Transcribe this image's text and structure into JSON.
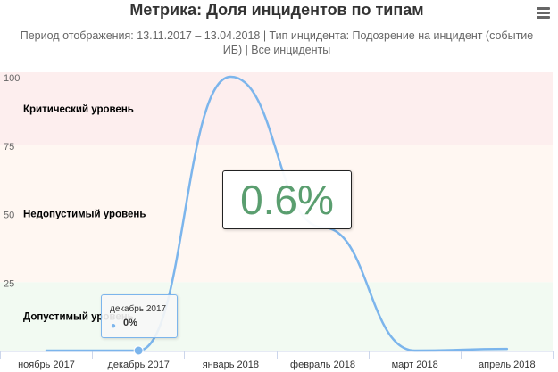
{
  "chart_data": {
    "type": "area",
    "title": "Метрика: Доля инцидентов по типам",
    "subtitle": "Период отображения: 13.11.2017 – 13.04.2018 | Тип инцидента: Подозрение на инцидент (событие ИБ) | Все инциденты",
    "categories": [
      "ноябрь 2017",
      "декабрь 2017",
      "январь 2018",
      "февраль 2018",
      "март 2018",
      "апрель 2018"
    ],
    "series": [
      {
        "values": [
          0,
          0,
          100,
          45,
          0,
          0.6
        ]
      }
    ],
    "ylim": [
      0,
      100
    ],
    "yticks": [
      25,
      50,
      75,
      100
    ],
    "bands": [
      {
        "label": "Допустимый уровень",
        "from": 0,
        "to": 25,
        "color": "#f2faf2"
      },
      {
        "label": "Недопустимый уровень",
        "from": 25,
        "to": 75,
        "color": "#fff7f2"
      },
      {
        "label": "Критический уровень",
        "from": 75,
        "to": 100,
        "color": "#fdeeee"
      }
    ],
    "big_value": "0.6%",
    "tooltip": {
      "category": "декабрь 2017",
      "value": "0%"
    },
    "colors": {
      "series": "#7cb5ec",
      "big_value": "#5a9e6f"
    }
  }
}
